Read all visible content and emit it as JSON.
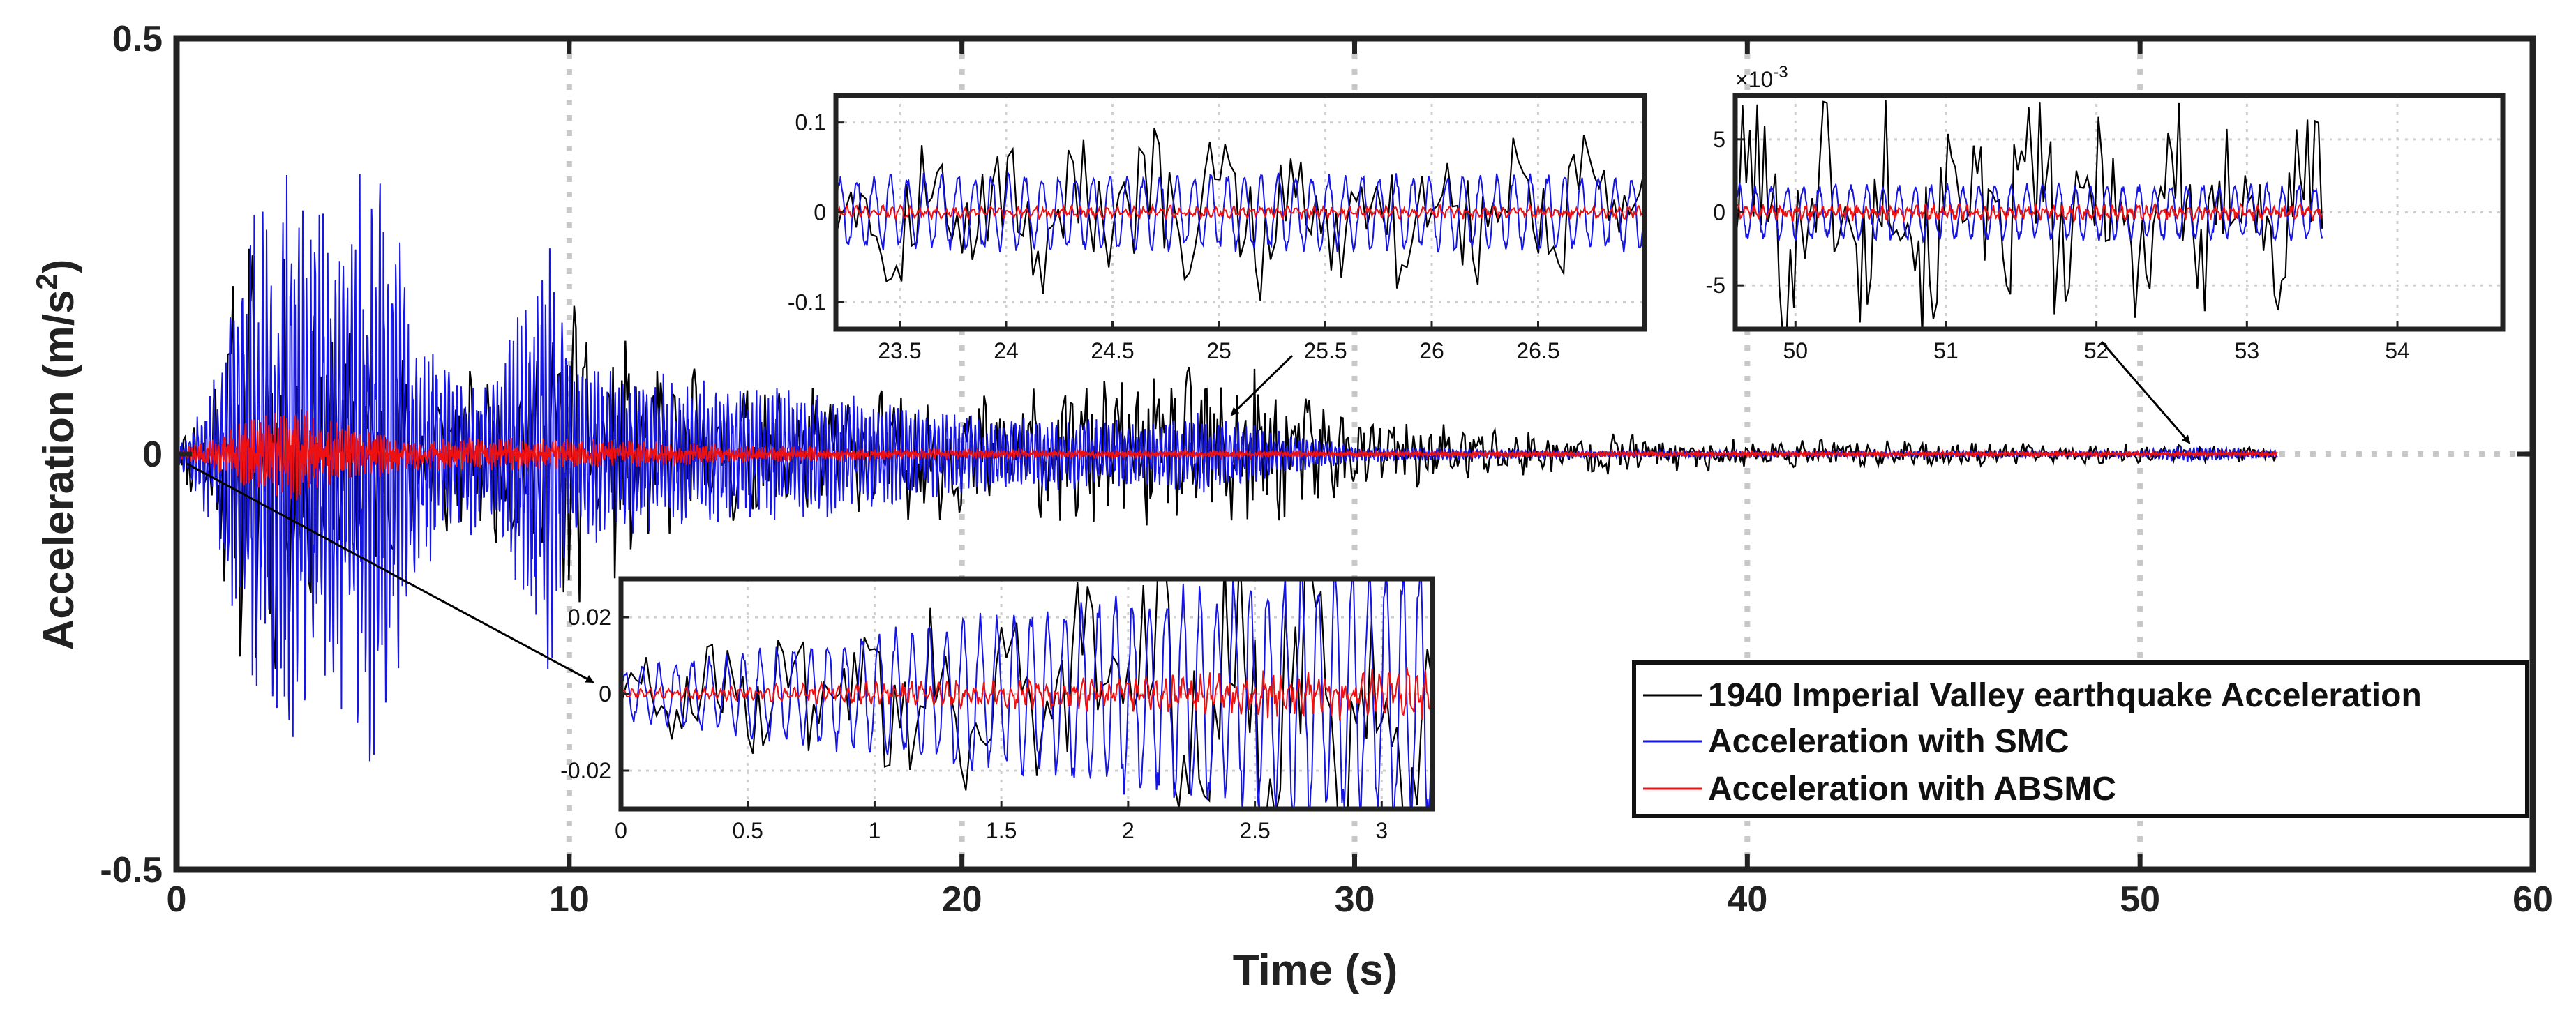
{
  "chart_data": {
    "type": "line",
    "title": "",
    "xlabel": "Time (s)",
    "ylabel_main": "Acceleration  (m/s",
    "ylabel_sup": "2",
    "ylabel_close": ")",
    "xlim": [
      0,
      60
    ],
    "ylim": [
      -0.5,
      0.5
    ],
    "xticks": [
      0,
      10,
      20,
      30,
      40,
      50,
      60
    ],
    "xtick_labels": [
      "0",
      "10",
      "20",
      "30",
      "40",
      "50",
      "60"
    ],
    "yticks": [
      -0.5,
      0,
      0.5
    ],
    "ytick_labels": [
      "-0.5",
      "0",
      "0.5"
    ],
    "grid": true,
    "legend_position": "bottom-right",
    "series": [
      {
        "name": "1940 Imperial Valley earthquake Acceleration",
        "color": "#000000"
      },
      {
        "name": "Acceleration with SMC",
        "color": "#1515e6"
      },
      {
        "name": "Acceleration with ABSMC",
        "color": "#ee1111"
      }
    ],
    "envelope_notes": "Approximate signal envelopes (data units) over time for reconstruction",
    "envelopes": {
      "earthquake": {
        "t": [
          0,
          1,
          2,
          2.5,
          3,
          4,
          5,
          6,
          8,
          10,
          12,
          15,
          20,
          25,
          27,
          30,
          35,
          40,
          45,
          50,
          53.5
        ],
        "amp": [
          0.02,
          0.12,
          0.34,
          0.28,
          0.2,
          0.2,
          0.15,
          0.12,
          0.1,
          0.22,
          0.12,
          0.09,
          0.08,
          0.1,
          0.12,
          0.05,
          0.03,
          0.02,
          0.015,
          0.012,
          0.01
        ]
      },
      "smc": {
        "t": [
          0,
          1,
          2,
          3,
          4,
          5,
          5.5,
          6,
          8,
          9.5,
          10,
          12,
          14,
          16,
          20,
          25,
          26,
          28,
          30,
          35,
          40,
          50,
          51,
          53.5
        ],
        "amp": [
          0.01,
          0.1,
          0.3,
          0.35,
          0.3,
          0.39,
          0.35,
          0.15,
          0.08,
          0.27,
          0.12,
          0.1,
          0.09,
          0.08,
          0.05,
          0.04,
          0.05,
          0.03,
          0.01,
          0.005,
          0.004,
          0.004,
          0.01,
          0.005
        ]
      },
      "absmc": {
        "t": [
          0,
          1,
          2,
          3,
          4,
          5,
          6,
          10,
          15,
          20,
          30,
          53.5
        ],
        "amp": [
          0.005,
          0.02,
          0.05,
          0.06,
          0.04,
          0.03,
          0.02,
          0.02,
          0.01,
          0.006,
          0.004,
          0.003
        ]
      }
    },
    "insets": [
      {
        "name": "inset-23-27s",
        "xlim": [
          23.2,
          27
        ],
        "ylim": [
          -0.13,
          0.13
        ],
        "xticks": [
          23.5,
          24,
          24.5,
          25,
          25.5,
          26,
          26.5
        ],
        "xtick_labels": [
          "23.5",
          "24",
          "24.5",
          "25",
          "25.5",
          "26",
          "26.5"
        ],
        "yticks": [
          -0.1,
          0,
          0.1
        ],
        "ytick_labels": [
          "-0.1",
          "0",
          "0.1"
        ],
        "exponent_label": "",
        "amp_earthquake": 0.1,
        "amp_smc": 0.045,
        "amp_absmc": 0.008
      },
      {
        "name": "inset-49-55s",
        "xlim": [
          49.6,
          54.7
        ],
        "ylim": [
          -8,
          8
        ],
        "xticks": [
          50,
          51,
          52,
          53,
          54
        ],
        "xtick_labels": [
          "50",
          "51",
          "52",
          "53",
          "54"
        ],
        "yticks": [
          -5,
          0,
          5
        ],
        "ytick_labels": [
          "-5",
          "0",
          "5"
        ],
        "exponent_label": "×10",
        "exponent_sup": "-3",
        "amp_earthquake": 9,
        "amp_smc": 2,
        "amp_absmc": 0.6
      },
      {
        "name": "inset-0-3.2s",
        "xlim": [
          0,
          3.2
        ],
        "ylim": [
          -0.03,
          0.03
        ],
        "xticks": [
          0,
          0.5,
          1,
          1.5,
          2,
          2.5,
          3
        ],
        "xtick_labels": [
          "0",
          "0.5",
          "1",
          "1.5",
          "2",
          "2.5",
          "3"
        ],
        "yticks": [
          -0.02,
          0,
          0.02
        ],
        "ytick_labels": [
          "-0.02",
          "0",
          "0.02"
        ],
        "exponent_label": "",
        "amp_earthquake": 0.03,
        "amp_smc": 0.02,
        "amp_absmc": 0.004
      }
    ]
  }
}
